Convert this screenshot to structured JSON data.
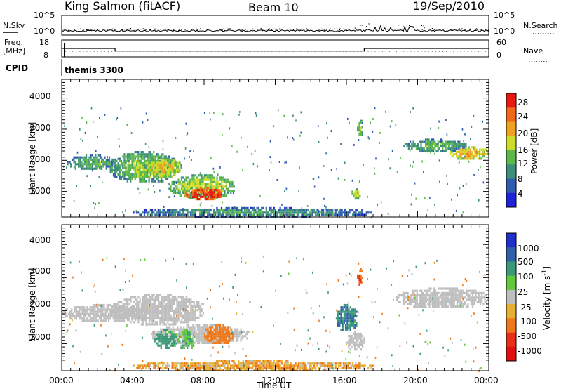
{
  "header": {
    "station": "King Salmon (fitACF)",
    "beam": "Beam 10",
    "date": "19/Sep/2010"
  },
  "noise_panel": {
    "left_label": "N.Sky",
    "right_label": "N.Search",
    "left_ticks": [
      "10^5",
      "10^0"
    ],
    "right_ticks": [
      "10^5",
      "10^0"
    ]
  },
  "freq_panel": {
    "left_label_line1": "Freq.",
    "left_label_line2": "[MHz]",
    "right_label": "Nave",
    "left_ticks": [
      "18",
      "8"
    ],
    "right_ticks": [
      "60",
      "0"
    ]
  },
  "cpid": {
    "label": "CPID",
    "program": "themis 3300"
  },
  "axes": {
    "ylabel": "Slant Range [km]",
    "xlabel": "Time UT",
    "y_ticks": [
      "1000",
      "2000",
      "3000",
      "4000"
    ],
    "x_ticks": [
      "00:00",
      "04:00",
      "08:00",
      "12:00",
      "16:00",
      "20:00",
      "00:00"
    ]
  },
  "colorbars": {
    "power": {
      "label": "Power [dB]",
      "ticks": [
        "4",
        "8",
        "12",
        "16",
        "20",
        "24",
        "28"
      ],
      "colors": [
        "#1f22d8",
        "#2f5cb0",
        "#3c8f78",
        "#5cb84a",
        "#cddc28",
        "#f0a020",
        "#f06818",
        "#e81810"
      ]
    },
    "velocity": {
      "label_text": "Velocity [m s",
      "label_exp": "-1",
      "label_close": "]",
      "ticks": [
        "1000",
        "500",
        "100",
        "25",
        "-25",
        "-100",
        "-500",
        "-1000"
      ],
      "colors": [
        "#2030c8",
        "#3060a8",
        "#3a9a78",
        "#62c83c",
        "#bebebe",
        "#e8b030",
        "#f07818",
        "#e83018",
        "#e01010"
      ]
    }
  },
  "chart_data": [
    {
      "type": "line",
      "title": "King Salmon (fitACF)",
      "x_range": [
        "00:00",
        "24:00"
      ],
      "series": [
        {
          "name": "N.Sky",
          "note": "noise level, near 10^0 with spikes"
        },
        {
          "name": "N.Search",
          "note": "dotted"
        }
      ]
    },
    {
      "type": "line",
      "x": [
        0,
        3,
        3,
        17,
        17,
        24
      ],
      "series": [
        {
          "name": "Freq.",
          "values": [
            13,
            13,
            11.5,
            11.5,
            13,
            13
          ]
        }
      ],
      "ylim": [
        8,
        18
      ]
    },
    {
      "type": "heatmap",
      "title": "Power [dB]",
      "xlabel": "Time UT",
      "ylabel": "Slant Range [km]",
      "x_range": [
        0,
        24
      ],
      "ylim": [
        180,
        4600
      ],
      "zlim": [
        0,
        30
      ],
      "regions": [
        {
          "t": [
            0.3,
            3.1
          ],
          "range_km": [
            1700,
            2200
          ],
          "level_db": 10
        },
        {
          "t": [
            2.7,
            6.5
          ],
          "range_km": [
            1300,
            2300
          ],
          "level_db": 12
        },
        {
          "t": [
            4.6,
            6.7
          ],
          "range_km": [
            1500,
            2100
          ],
          "level_db": 16
        },
        {
          "t": [
            6.0,
            9.7
          ],
          "range_km": [
            800,
            1550
          ],
          "level_db": 14
        },
        {
          "t": [
            6.9,
            9.1
          ],
          "range_km": [
            750,
            1150
          ],
          "level_db": 26
        },
        {
          "t": [
            16.2,
            16.8
          ],
          "range_km": [
            800,
            1100
          ],
          "level_db": 14
        },
        {
          "t": [
            16.6,
            16.9
          ],
          "range_km": [
            2800,
            3300
          ],
          "level_db": 12
        },
        {
          "t": [
            19.2,
            22.7
          ],
          "range_km": [
            2300,
            2700
          ],
          "level_db": 10
        },
        {
          "t": [
            21.8,
            24.0
          ],
          "range_km": [
            2050,
            2450
          ],
          "level_db": 18
        },
        {
          "t": [
            4.0,
            17.5
          ],
          "range_km": [
            200,
            500
          ],
          "level_db": 8
        }
      ]
    },
    {
      "type": "heatmap",
      "title": "Velocity [m s-1]",
      "xlabel": "Time UT",
      "ylabel": "Slant Range [km]",
      "x_range": [
        0,
        24
      ],
      "ylim": [
        180,
        4600
      ],
      "zlim": [
        -1000,
        1000
      ],
      "regions": [
        {
          "t": [
            0.0,
            4.8
          ],
          "range_km": [
            1700,
            2200
          ],
          "velocity": 0
        },
        {
          "t": [
            2.8,
            8.0
          ],
          "range_km": [
            1600,
            2500
          ],
          "velocity": 0
        },
        {
          "t": [
            5.0,
            10.5
          ],
          "range_km": [
            1000,
            1600
          ],
          "velocity": 0
        },
        {
          "t": [
            5.2,
            6.5
          ],
          "range_km": [
            850,
            1450
          ],
          "velocity": 100
        },
        {
          "t": [
            6.5,
            7.5
          ],
          "range_km": [
            850,
            1450
          ],
          "velocity": 60
        },
        {
          "t": [
            8.0,
            9.6
          ],
          "range_km": [
            1000,
            1600
          ],
          "velocity": -150
        },
        {
          "t": [
            16.0,
            17.0
          ],
          "range_km": [
            800,
            1400
          ],
          "velocity": 0
        },
        {
          "t": [
            15.4,
            16.6
          ],
          "range_km": [
            1400,
            2200
          ],
          "velocity": 300
        },
        {
          "t": [
            16.6,
            16.9
          ],
          "range_km": [
            2800,
            3300
          ],
          "velocity": -300
        },
        {
          "t": [
            18.8,
            24.0
          ],
          "range_km": [
            2100,
            2700
          ],
          "velocity": 0
        },
        {
          "t": [
            4.0,
            17.5
          ],
          "range_km": [
            200,
            500
          ],
          "velocity": -50
        }
      ]
    }
  ]
}
